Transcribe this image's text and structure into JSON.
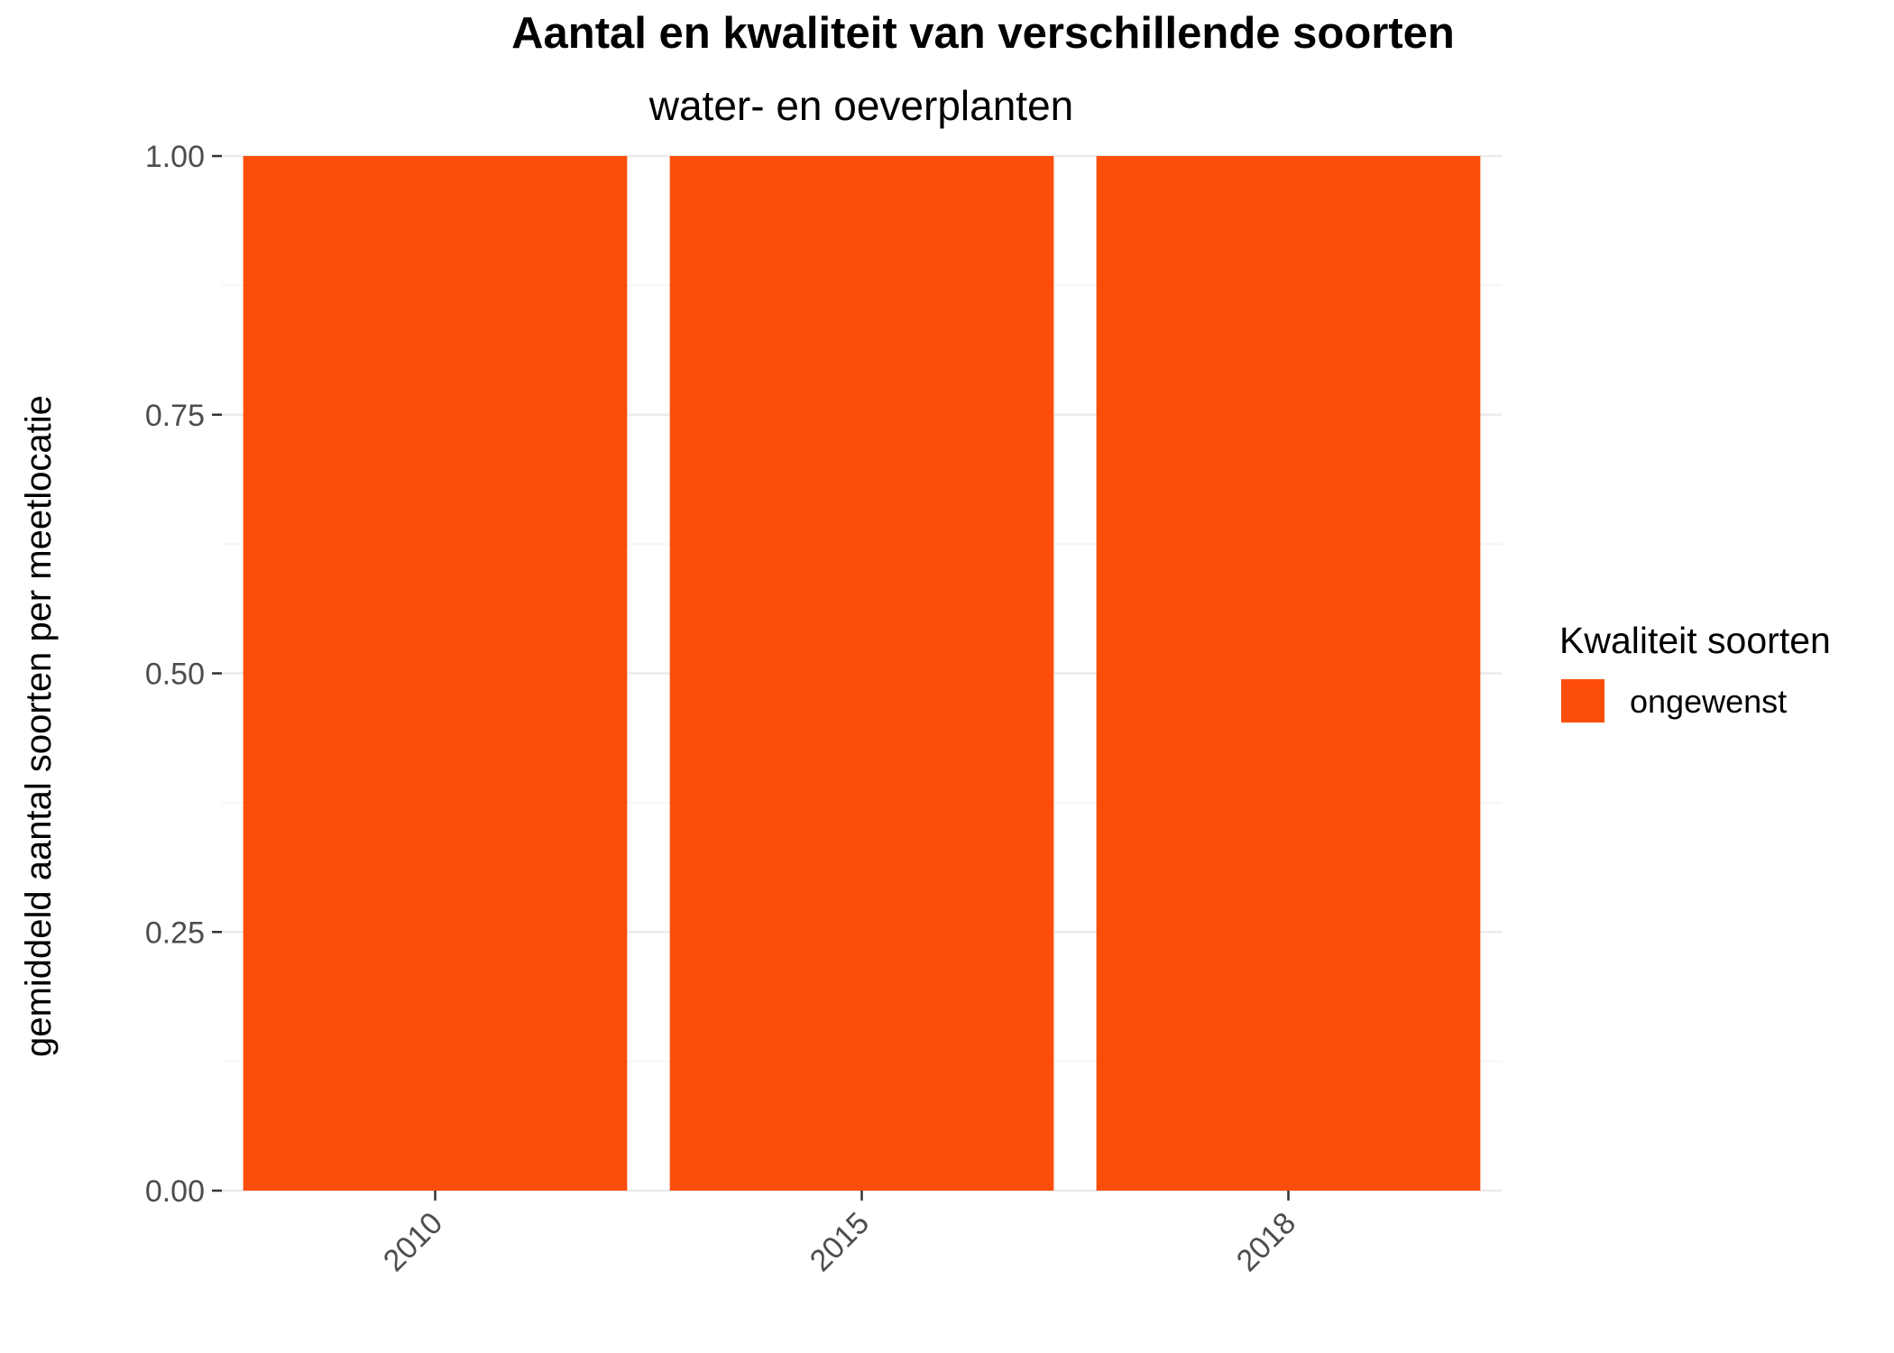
{
  "chart_data": {
    "type": "bar",
    "title": "Aantal en kwaliteit van verschillende soorten",
    "subtitle": "water- en oeverplanten",
    "xlabel": "",
    "ylabel": "gemiddeld aantal soorten per meetlocatie",
    "categories": [
      "2010",
      "2015",
      "2018"
    ],
    "series": [
      {
        "name": "ongewenst",
        "values": [
          1.0,
          1.0,
          1.0
        ],
        "color": "#fc4e0a"
      }
    ],
    "ylim": [
      0,
      1
    ],
    "yticks": [
      0,
      0.25,
      0.5,
      0.75,
      1
    ],
    "ytick_labels": [
      "0.00",
      "0.25",
      "0.50",
      "0.75",
      "1.00"
    ],
    "x_tick_rotation_deg": 45,
    "grid": true,
    "legend": {
      "title": "Kwaliteit soorten",
      "position": "right",
      "items": [
        {
          "label": "ongewenst",
          "color": "#fc4e0a"
        }
      ]
    }
  }
}
